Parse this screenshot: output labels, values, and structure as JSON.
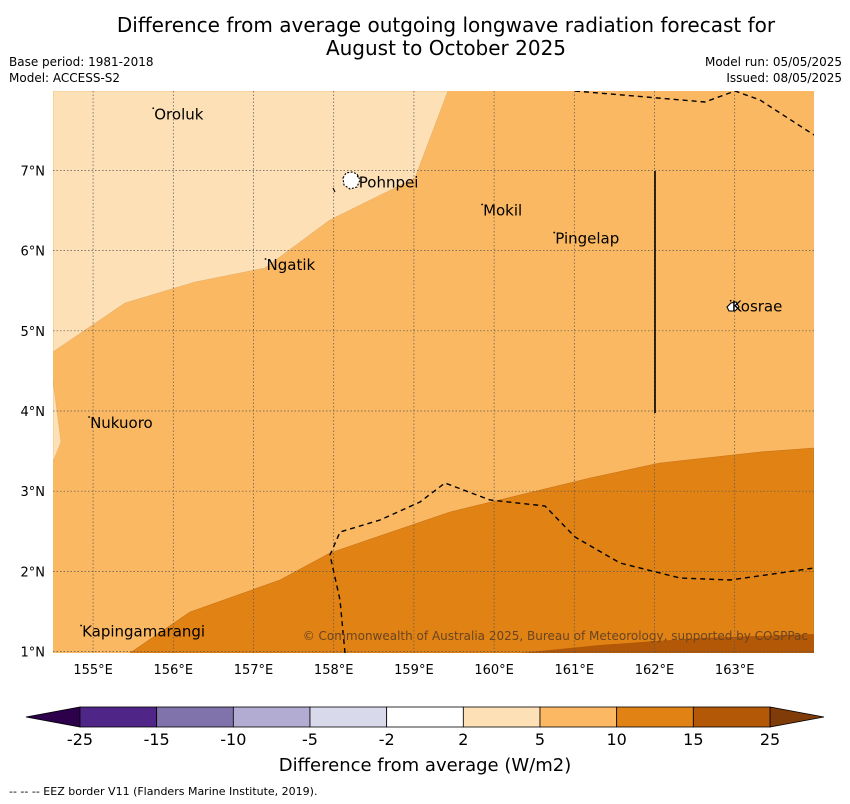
{
  "title": {
    "line1": "Difference from average outgoing longwave radiation forecast for",
    "line2": "August to October 2025"
  },
  "meta": {
    "base_period": "Base period: 1981-2018",
    "model": "Model: ACCESS-S2",
    "model_run": "Model run: 05/05/2025",
    "issued": "Issued: 08/05/2025"
  },
  "map": {
    "lon_ticks": [
      "155°E",
      "156°E",
      "157°E",
      "158°E",
      "159°E",
      "160°E",
      "161°E",
      "162°E",
      "163°E"
    ],
    "lat_ticks": [
      "7°N",
      "6°N",
      "5°N",
      "4°N",
      "3°N",
      "2°N",
      "1°N"
    ],
    "places": [
      {
        "name": "Oroluk",
        "lon": 155.75,
        "lat": 7.7
      },
      {
        "name": "Pohnpei",
        "lon": 158.3,
        "lat": 6.85
      },
      {
        "name": "Mokil",
        "lon": 159.85,
        "lat": 6.5
      },
      {
        "name": "Pingelap",
        "lon": 160.75,
        "lat": 6.15
      },
      {
        "name": "Ngatik",
        "lon": 157.15,
        "lat": 5.82
      },
      {
        "name": "Kosrae",
        "lon": 162.95,
        "lat": 5.3
      },
      {
        "name": "Nukuoro",
        "lon": 154.95,
        "lat": 3.85
      },
      {
        "name": "Kapingamarangi",
        "lon": 154.85,
        "lat": 1.25
      }
    ],
    "copyright": "© Commonwealth of Australia 2025, Bureau of Meteorology, supported by COSPPac"
  },
  "colorbar": {
    "title": "Difference from average (W/m2)",
    "levels": [
      "-25",
      "-15",
      "-10",
      "-5",
      "-2",
      "2",
      "5",
      "10",
      "15",
      "25"
    ],
    "colors": [
      "#4f2688",
      "#8073ac",
      "#b2abd2",
      "#d8daeb",
      "#ffffff",
      "#fee0b6",
      "#fdb863",
      "#e08214",
      "#b35806"
    ],
    "under_color": "#2d004b",
    "over_color": "#7f3b08"
  },
  "footer": "--  --  -- EEZ border V11 (Flanders Marine Institute, 2019)."
}
